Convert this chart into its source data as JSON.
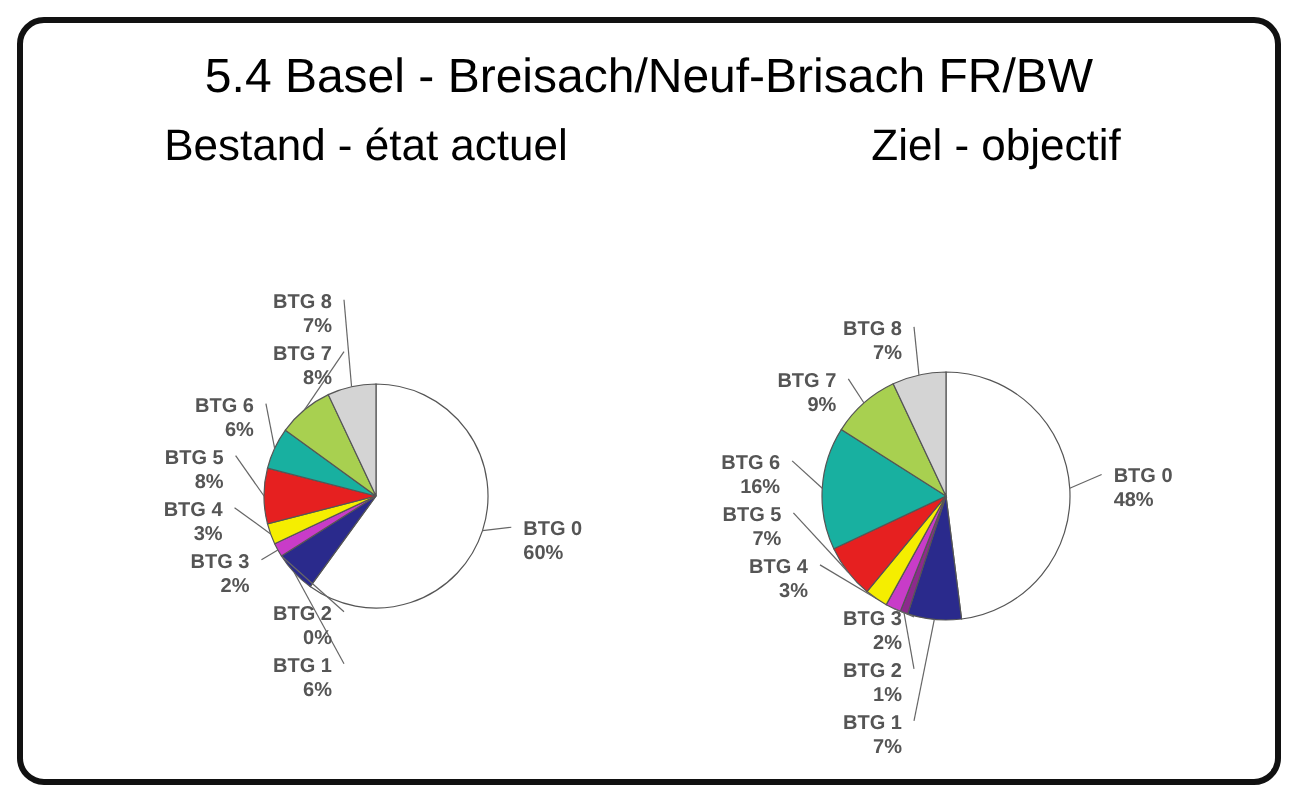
{
  "chart_data": [
    {
      "type": "pie",
      "title": "5.4 Basel - Breisach/Neuf-Brisach FR/BW",
      "subtitle": "Bestand - état actuel",
      "categories": [
        "BTG 0",
        "BTG 1",
        "BTG 2",
        "BTG 3",
        "BTG 4",
        "BTG 5",
        "BTG 6",
        "BTG 7",
        "BTG 8"
      ],
      "values": [
        60,
        6,
        0,
        2,
        3,
        8,
        6,
        8,
        7
      ],
      "value_labels": [
        "60%",
        "6%",
        "0%",
        "2%",
        "3%",
        "8%",
        "6%",
        "8%",
        "7%"
      ],
      "colors": [
        "#ffffff",
        "#2a2a8c",
        "#8c2a8c",
        "#c83cc8",
        "#f5ee00",
        "#e62020",
        "#18b0a0",
        "#a8d050",
        "#d4d4d4"
      ]
    },
    {
      "type": "pie",
      "subtitle": "Ziel - objectif",
      "categories": [
        "BTG 0",
        "BTG 1",
        "BTG 2",
        "BTG 3",
        "BTG 4",
        "BTG 5",
        "BTG 6",
        "BTG 7",
        "BTG 8"
      ],
      "values": [
        48,
        7,
        1,
        2,
        3,
        7,
        16,
        9,
        7
      ],
      "value_labels": [
        "48%",
        "7%",
        "1%",
        "2%",
        "3%",
        "7%",
        "16%",
        "9%",
        "7%"
      ],
      "colors": [
        "#ffffff",
        "#2a2a8c",
        "#8c2a8c",
        "#c83cc8",
        "#f5ee00",
        "#e62020",
        "#18b0a0",
        "#a8d050",
        "#d4d4d4"
      ]
    }
  ]
}
